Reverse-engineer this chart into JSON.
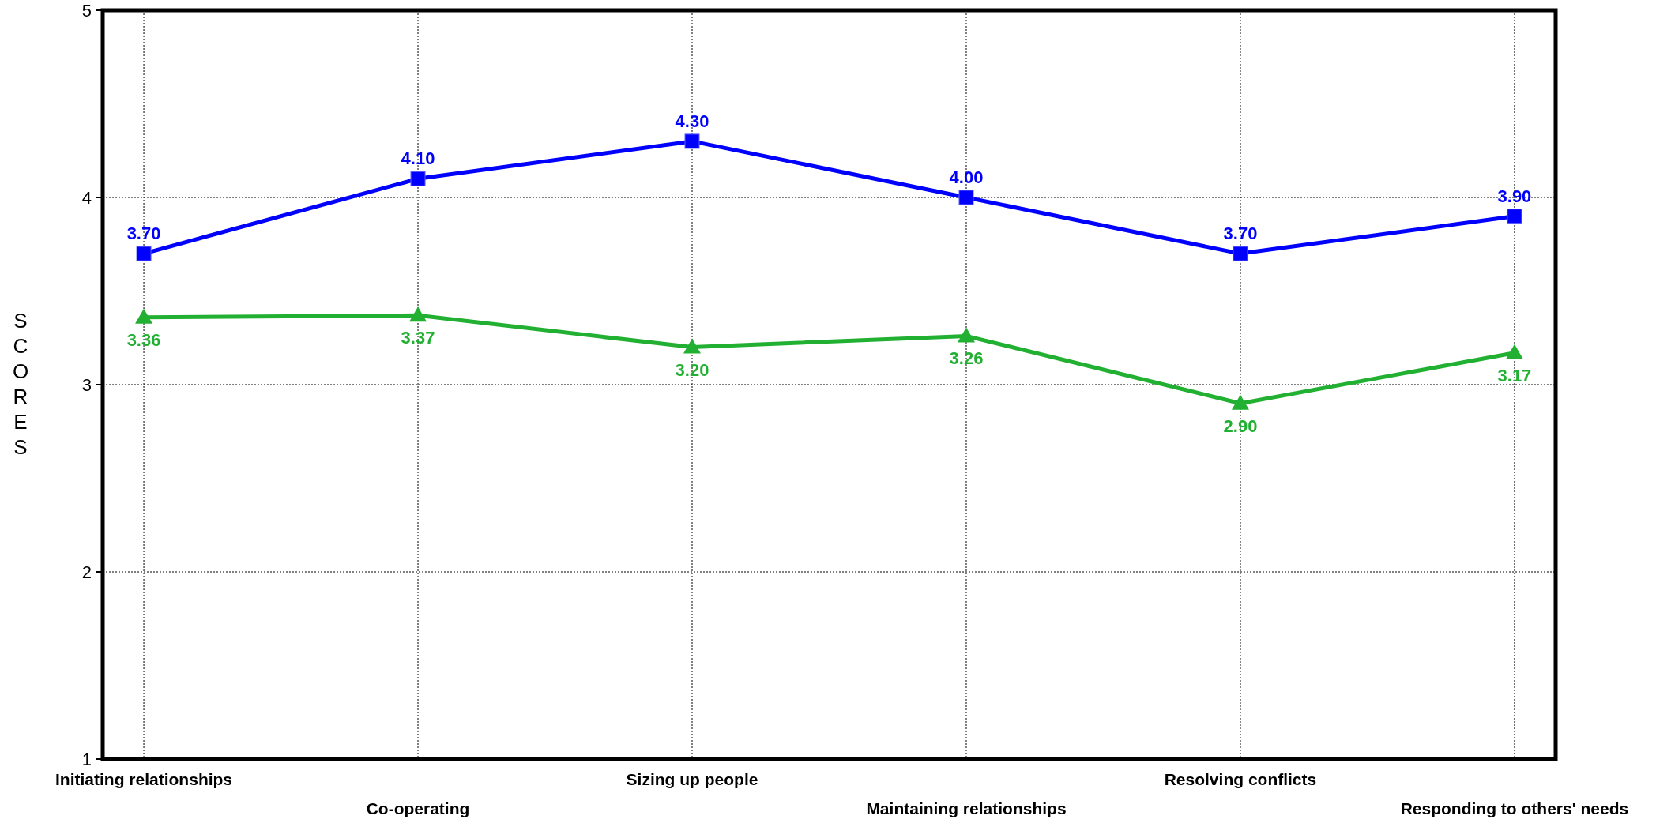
{
  "chart_data": {
    "type": "line",
    "ylabel": "SCORES",
    "categories": [
      "Initiating relationships",
      "Co-operating",
      "Sizing up people",
      "Maintaining relationships",
      "Resolving conflicts",
      "Responding to others' needs"
    ],
    "series": [
      {
        "color": "#0000ff",
        "marker": "square",
        "values": [
          3.7,
          4.1,
          4.3,
          4.0,
          3.7,
          3.9
        ],
        "value_labels": [
          "3.70",
          "4.10",
          "4.30",
          "4.00",
          "3.70",
          "3.90"
        ]
      },
      {
        "color": "#22b033",
        "marker": "triangle",
        "values": [
          3.36,
          3.37,
          3.2,
          3.26,
          2.9,
          3.17
        ],
        "value_labels": [
          "3.36",
          "3.37",
          "3.20",
          "3.26",
          "2.90",
          "3.17"
        ]
      }
    ],
    "ylim": [
      1,
      5
    ],
    "yticks": [
      1,
      2,
      3,
      4,
      5
    ],
    "grid": true,
    "line_style": "solid"
  }
}
